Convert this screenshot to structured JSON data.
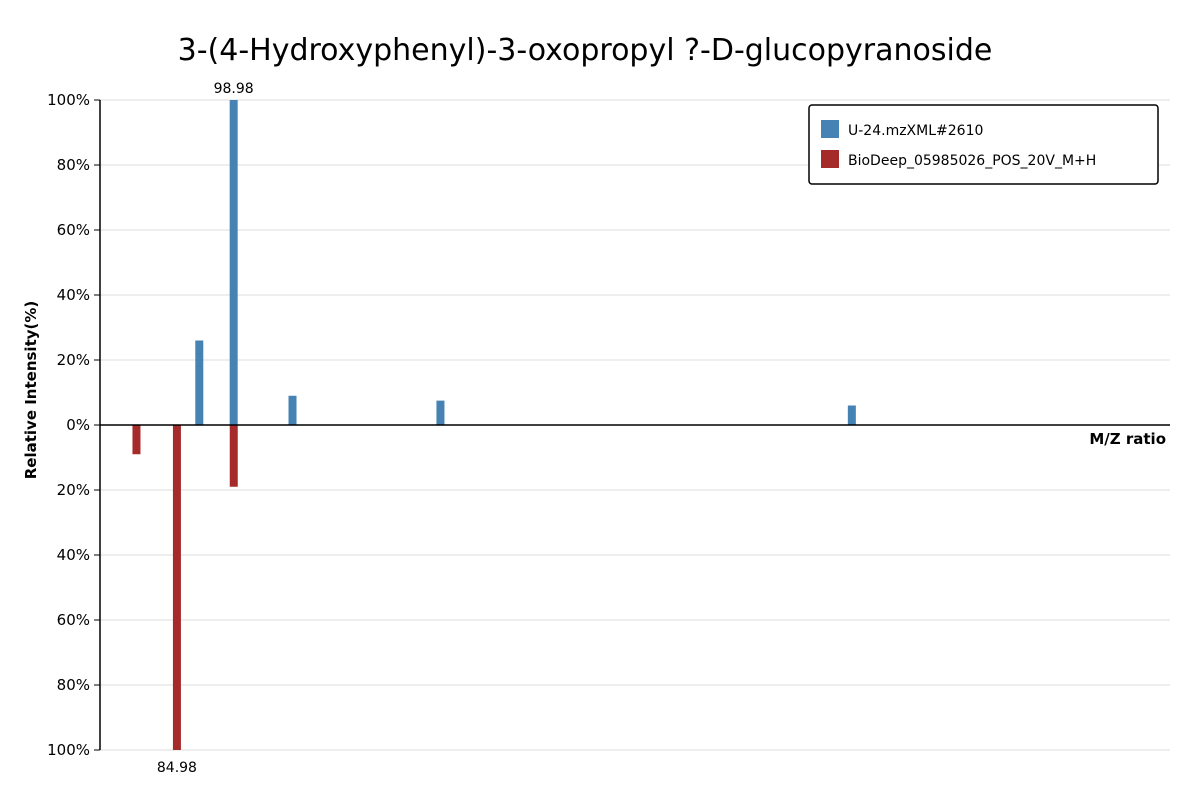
{
  "chart_data": {
    "type": "bar",
    "title": "3-(4-Hydroxyphenyl)-3-oxopropyl ?-D-glucopyranoside",
    "xlabel": "M/Z ratio",
    "ylabel": "Relative Intensity(%)",
    "xlim": [
      66,
      330
    ],
    "ylim": [
      -100,
      100
    ],
    "y_ticks": [
      {
        "value": 100,
        "label": "100%"
      },
      {
        "value": 80,
        "label": "80%"
      },
      {
        "value": 60,
        "label": "60%"
      },
      {
        "value": 40,
        "label": "40%"
      },
      {
        "value": 20,
        "label": "20%"
      },
      {
        "value": 0,
        "label": "0%"
      },
      {
        "value": -20,
        "label": "20%"
      },
      {
        "value": -40,
        "label": "40%"
      },
      {
        "value": -60,
        "label": "60%"
      },
      {
        "value": -80,
        "label": "80%"
      },
      {
        "value": -100,
        "label": "100%"
      }
    ],
    "grid": true,
    "legend_position": "top-right",
    "series": [
      {
        "name": "U-24.mzXML#2610",
        "color": "#4682b4",
        "direction": "up",
        "peaks": [
          {
            "mz": 90.5,
            "intensity": 26
          },
          {
            "mz": 98.98,
            "intensity": 100,
            "label": "98.98"
          },
          {
            "mz": 113.5,
            "intensity": 9
          },
          {
            "mz": 150.0,
            "intensity": 7.5
          },
          {
            "mz": 251.5,
            "intensity": 6
          }
        ]
      },
      {
        "name": "BioDeep_05985026_POS_20V_M+H",
        "color": "#a52a2a",
        "direction": "down",
        "peaks": [
          {
            "mz": 75.0,
            "intensity": 9
          },
          {
            "mz": 84.98,
            "intensity": 100,
            "label": "84.98"
          },
          {
            "mz": 99.0,
            "intensity": 19
          }
        ]
      }
    ]
  }
}
